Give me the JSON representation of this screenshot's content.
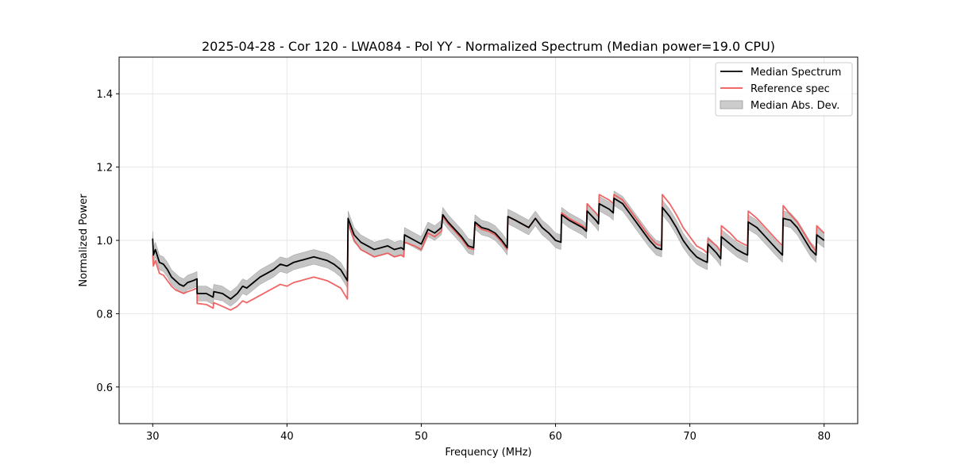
{
  "chart_data": {
    "type": "line",
    "title": "2025-04-28 - Cor 120 - LWA084 - Pol YY - Normalized Spectrum (Median power=19.0 CPU)",
    "xlabel": "Frequency (MHz)",
    "ylabel": "Normalized Power",
    "xlim": [
      27.5,
      82.5
    ],
    "ylim": [
      0.5,
      1.5
    ],
    "xticks": [
      30,
      40,
      50,
      60,
      70,
      80
    ],
    "yticks": [
      0.6,
      0.8,
      1.0,
      1.2,
      1.4
    ],
    "xtick_labels": [
      "30",
      "40",
      "50",
      "60",
      "70",
      "80"
    ],
    "ytick_labels": [
      "0.6",
      "0.8",
      "1.0",
      "1.2",
      "1.4"
    ],
    "grid": true,
    "legend": {
      "position": "top-right",
      "entries": [
        "Median Spectrum",
        "Reference spec",
        "Median Abs. Dev."
      ]
    },
    "series": [
      {
        "name": "Median Spectrum",
        "color": "#000000",
        "x": [
          30.0,
          30.05,
          30.2,
          30.5,
          30.8,
          31.1,
          31.4,
          31.7,
          32.0,
          32.3,
          32.6,
          33.0,
          33.3,
          33.31,
          34.0,
          34.5,
          34.55,
          35.2,
          35.8,
          36.3,
          36.7,
          37.0,
          37.5,
          38.0,
          38.5,
          39.0,
          39.5,
          40.0,
          40.5,
          41.0,
          41.5,
          42.0,
          42.5,
          43.0,
          43.5,
          44.0,
          44.5,
          44.55,
          45.0,
          45.5,
          46.0,
          46.5,
          47.0,
          47.5,
          48.0,
          48.5,
          48.7,
          48.75,
          49.5,
          50.0,
          50.5,
          51.0,
          51.5,
          51.6,
          52.0,
          52.5,
          53.0,
          53.5,
          53.9,
          54.0,
          54.5,
          55.0,
          55.5,
          56.0,
          56.4,
          56.45,
          57.0,
          57.5,
          58.0,
          58.5,
          59.0,
          59.5,
          60.0,
          60.4,
          60.45,
          61.0,
          61.5,
          62.0,
          62.3,
          62.35,
          63.0,
          63.2,
          63.25,
          64.0,
          64.3,
          64.35,
          65.0,
          65.5,
          66.0,
          66.5,
          67.0,
          67.5,
          67.9,
          67.95,
          68.5,
          69.0,
          69.5,
          70.0,
          70.5,
          71.0,
          71.3,
          71.35,
          72.0,
          72.3,
          72.35,
          73.0,
          73.5,
          74.0,
          74.3,
          74.35,
          75.0,
          75.5,
          76.0,
          76.5,
          76.9,
          76.95,
          77.5,
          78.0,
          78.5,
          79.0,
          79.4,
          79.45,
          80.0
        ],
        "y": [
          1.005,
          0.96,
          0.975,
          0.94,
          0.935,
          0.92,
          0.9,
          0.89,
          0.88,
          0.875,
          0.885,
          0.89,
          0.895,
          0.855,
          0.855,
          0.845,
          0.86,
          0.855,
          0.84,
          0.855,
          0.875,
          0.87,
          0.885,
          0.9,
          0.91,
          0.92,
          0.935,
          0.93,
          0.94,
          0.945,
          0.95,
          0.955,
          0.95,
          0.945,
          0.935,
          0.92,
          0.89,
          1.06,
          1.015,
          0.995,
          0.985,
          0.975,
          0.98,
          0.985,
          0.975,
          0.98,
          0.975,
          1.015,
          1.0,
          0.99,
          1.03,
          1.02,
          1.035,
          1.07,
          1.05,
          1.03,
          1.01,
          0.985,
          0.98,
          1.05,
          1.035,
          1.03,
          1.02,
          1.0,
          0.98,
          1.065,
          1.055,
          1.045,
          1.035,
          1.06,
          1.035,
          1.02,
          1.0,
          0.995,
          1.07,
          1.055,
          1.045,
          1.035,
          1.025,
          1.08,
          1.055,
          1.045,
          1.1,
          1.085,
          1.075,
          1.115,
          1.1,
          1.075,
          1.05,
          1.025,
          1.0,
          0.98,
          0.975,
          1.09,
          1.065,
          1.035,
          1.0,
          0.975,
          0.955,
          0.945,
          0.94,
          0.99,
          0.965,
          0.95,
          1.01,
          0.99,
          0.975,
          0.965,
          0.96,
          1.05,
          1.035,
          1.015,
          0.995,
          0.975,
          0.96,
          1.06,
          1.055,
          1.035,
          1.005,
          0.975,
          0.96,
          1.015,
          1.0
        ]
      },
      {
        "name": "Reference spec",
        "color": "#ee5555",
        "x": [
          30.0,
          30.05,
          30.2,
          30.5,
          30.8,
          31.1,
          31.4,
          31.7,
          32.0,
          32.3,
          32.6,
          33.0,
          33.3,
          33.31,
          34.0,
          34.5,
          34.55,
          35.2,
          35.8,
          36.3,
          36.7,
          37.0,
          37.5,
          38.0,
          38.5,
          39.0,
          39.5,
          40.0,
          40.5,
          41.0,
          41.5,
          42.0,
          42.5,
          43.0,
          43.5,
          44.0,
          44.5,
          44.55,
          45.0,
          45.5,
          46.0,
          46.5,
          47.0,
          47.5,
          48.0,
          48.5,
          48.7,
          48.75,
          49.5,
          50.0,
          50.5,
          51.0,
          51.5,
          51.6,
          52.0,
          52.5,
          53.0,
          53.5,
          53.9,
          54.0,
          54.5,
          55.0,
          55.5,
          56.0,
          56.4,
          56.45,
          57.0,
          57.5,
          58.0,
          58.5,
          59.0,
          59.5,
          60.0,
          60.4,
          60.45,
          61.0,
          61.5,
          62.0,
          62.3,
          62.35,
          63.0,
          63.2,
          63.25,
          64.0,
          64.3,
          64.35,
          65.0,
          65.5,
          66.0,
          66.5,
          67.0,
          67.5,
          67.9,
          67.95,
          68.5,
          69.0,
          69.5,
          70.0,
          70.5,
          71.0,
          71.3,
          71.35,
          72.0,
          72.3,
          72.35,
          73.0,
          73.5,
          74.0,
          74.3,
          74.35,
          75.0,
          75.5,
          76.0,
          76.5,
          76.9,
          76.95,
          77.5,
          78.0,
          78.5,
          79.0,
          79.4,
          79.45,
          80.0
        ],
        "y": [
          0.96,
          0.93,
          0.945,
          0.91,
          0.905,
          0.89,
          0.875,
          0.865,
          0.86,
          0.855,
          0.86,
          0.865,
          0.87,
          0.828,
          0.825,
          0.815,
          0.83,
          0.82,
          0.81,
          0.82,
          0.835,
          0.83,
          0.84,
          0.85,
          0.86,
          0.87,
          0.88,
          0.875,
          0.885,
          0.89,
          0.895,
          0.9,
          0.895,
          0.89,
          0.88,
          0.87,
          0.84,
          1.05,
          1.0,
          0.975,
          0.965,
          0.955,
          0.96,
          0.965,
          0.955,
          0.96,
          0.955,
          0.995,
          0.985,
          0.975,
          1.02,
          1.01,
          1.025,
          1.065,
          1.045,
          1.025,
          1.005,
          0.98,
          0.975,
          1.045,
          1.03,
          1.025,
          1.015,
          0.995,
          0.975,
          1.065,
          1.055,
          1.045,
          1.035,
          1.06,
          1.035,
          1.02,
          1.0,
          0.995,
          1.075,
          1.06,
          1.05,
          1.04,
          1.03,
          1.1,
          1.075,
          1.065,
          1.125,
          1.11,
          1.1,
          1.125,
          1.11,
          1.085,
          1.06,
          1.035,
          1.01,
          0.99,
          0.985,
          1.125,
          1.1,
          1.07,
          1.035,
          1.01,
          0.985,
          0.975,
          0.965,
          1.005,
          0.985,
          0.97,
          1.04,
          1.02,
          1.0,
          0.99,
          0.985,
          1.08,
          1.06,
          1.04,
          1.02,
          1.0,
          0.985,
          1.095,
          1.07,
          1.05,
          1.02,
          0.99,
          0.97,
          1.04,
          1.02
        ]
      }
    ],
    "band": {
      "name": "Median Abs. Dev.",
      "color": "#bbbbbb",
      "half_width": 0.02
    }
  }
}
